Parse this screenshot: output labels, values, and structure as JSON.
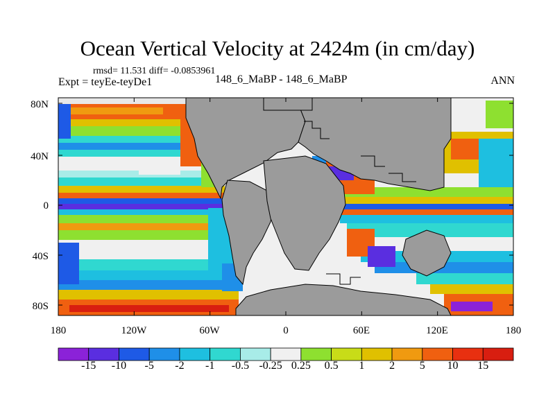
{
  "title": "Ocean Vertical Velocity at 2424m (in cm/day)",
  "stats": "rmsd= 11.531 diff= -0.0853961",
  "left_label": "Expt = teyEe-teyDe1",
  "center_label": "148_6_MaBP - 148_6_MaBP",
  "right_label": "ANN",
  "lat_ticks": [
    "80N",
    "40N",
    "0",
    "40S",
    "80S"
  ],
  "lon_ticks": [
    "180",
    "120W",
    "60W",
    "0",
    "60E",
    "120E",
    "180"
  ],
  "colorbar": {
    "labels": [
      "-15",
      "-10",
      "-5",
      "-2",
      "-1",
      "-0.5",
      "-0.25",
      "0.25",
      "0.5",
      "1",
      "2",
      "5",
      "10",
      "15"
    ],
    "colors": [
      "#8b22d8",
      "#5a2ee0",
      "#1e5ae6",
      "#1f8fe8",
      "#1ebfe0",
      "#30d8d0",
      "#a8ece8",
      "#f0f0f0",
      "#8ee030",
      "#c8dc18",
      "#e0c000",
      "#f09a10",
      "#f06010",
      "#e83010",
      "#d81e10"
    ]
  },
  "land_color": "#9b9b9b"
}
